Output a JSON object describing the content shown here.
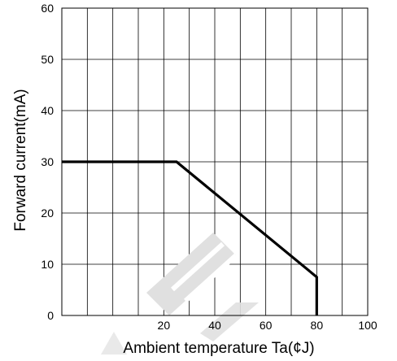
{
  "chart_data": {
    "type": "line",
    "title": "",
    "xlabel": "Ambient temperature Ta(¢J)",
    "ylabel": "Forward current(mA)",
    "xlim": [
      -20,
      100
    ],
    "ylim": [
      0,
      60
    ],
    "x_ticks": [
      20,
      40,
      60,
      80,
      100
    ],
    "y_ticks": [
      0,
      10,
      20,
      30,
      40,
      50,
      60
    ],
    "grid": true,
    "x_grid_step": 10,
    "y_grid_step": 10,
    "series": [
      {
        "color": "#000000",
        "points": [
          {
            "x": -20,
            "y": 30
          },
          {
            "x": 25,
            "y": 30
          },
          {
            "x": 80,
            "y": 7.5
          },
          {
            "x": 80,
            "y": 0
          }
        ]
      }
    ],
    "watermark_color": "#e0e0e0"
  }
}
